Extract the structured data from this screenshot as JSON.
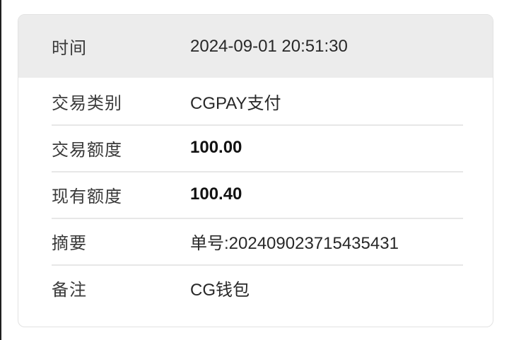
{
  "card": {
    "header_row": {
      "label": "时间",
      "value": "2024-09-01 20:51:30"
    },
    "rows": [
      {
        "label": "交易类别",
        "value": "CGPAY支付",
        "bold": false
      },
      {
        "label": "交易额度",
        "value": "100.00",
        "bold": true
      },
      {
        "label": "现有额度",
        "value": "100.40",
        "bold": true
      },
      {
        "label": "摘要",
        "value": "单号:202409023715435431",
        "bold": false
      },
      {
        "label": "备注",
        "value": "CG钱包",
        "bold": false
      }
    ]
  },
  "colors": {
    "page_bg": "#ffffff",
    "card_bg": "#ffffff",
    "card_border": "#e2e2e2",
    "header_bg": "#ececec",
    "separator": "#e7e7e7",
    "label_color": "#3a3a3a",
    "value_color": "#282828",
    "bold_value_color": "#121212",
    "edge_strip": "#1f1f1f"
  }
}
